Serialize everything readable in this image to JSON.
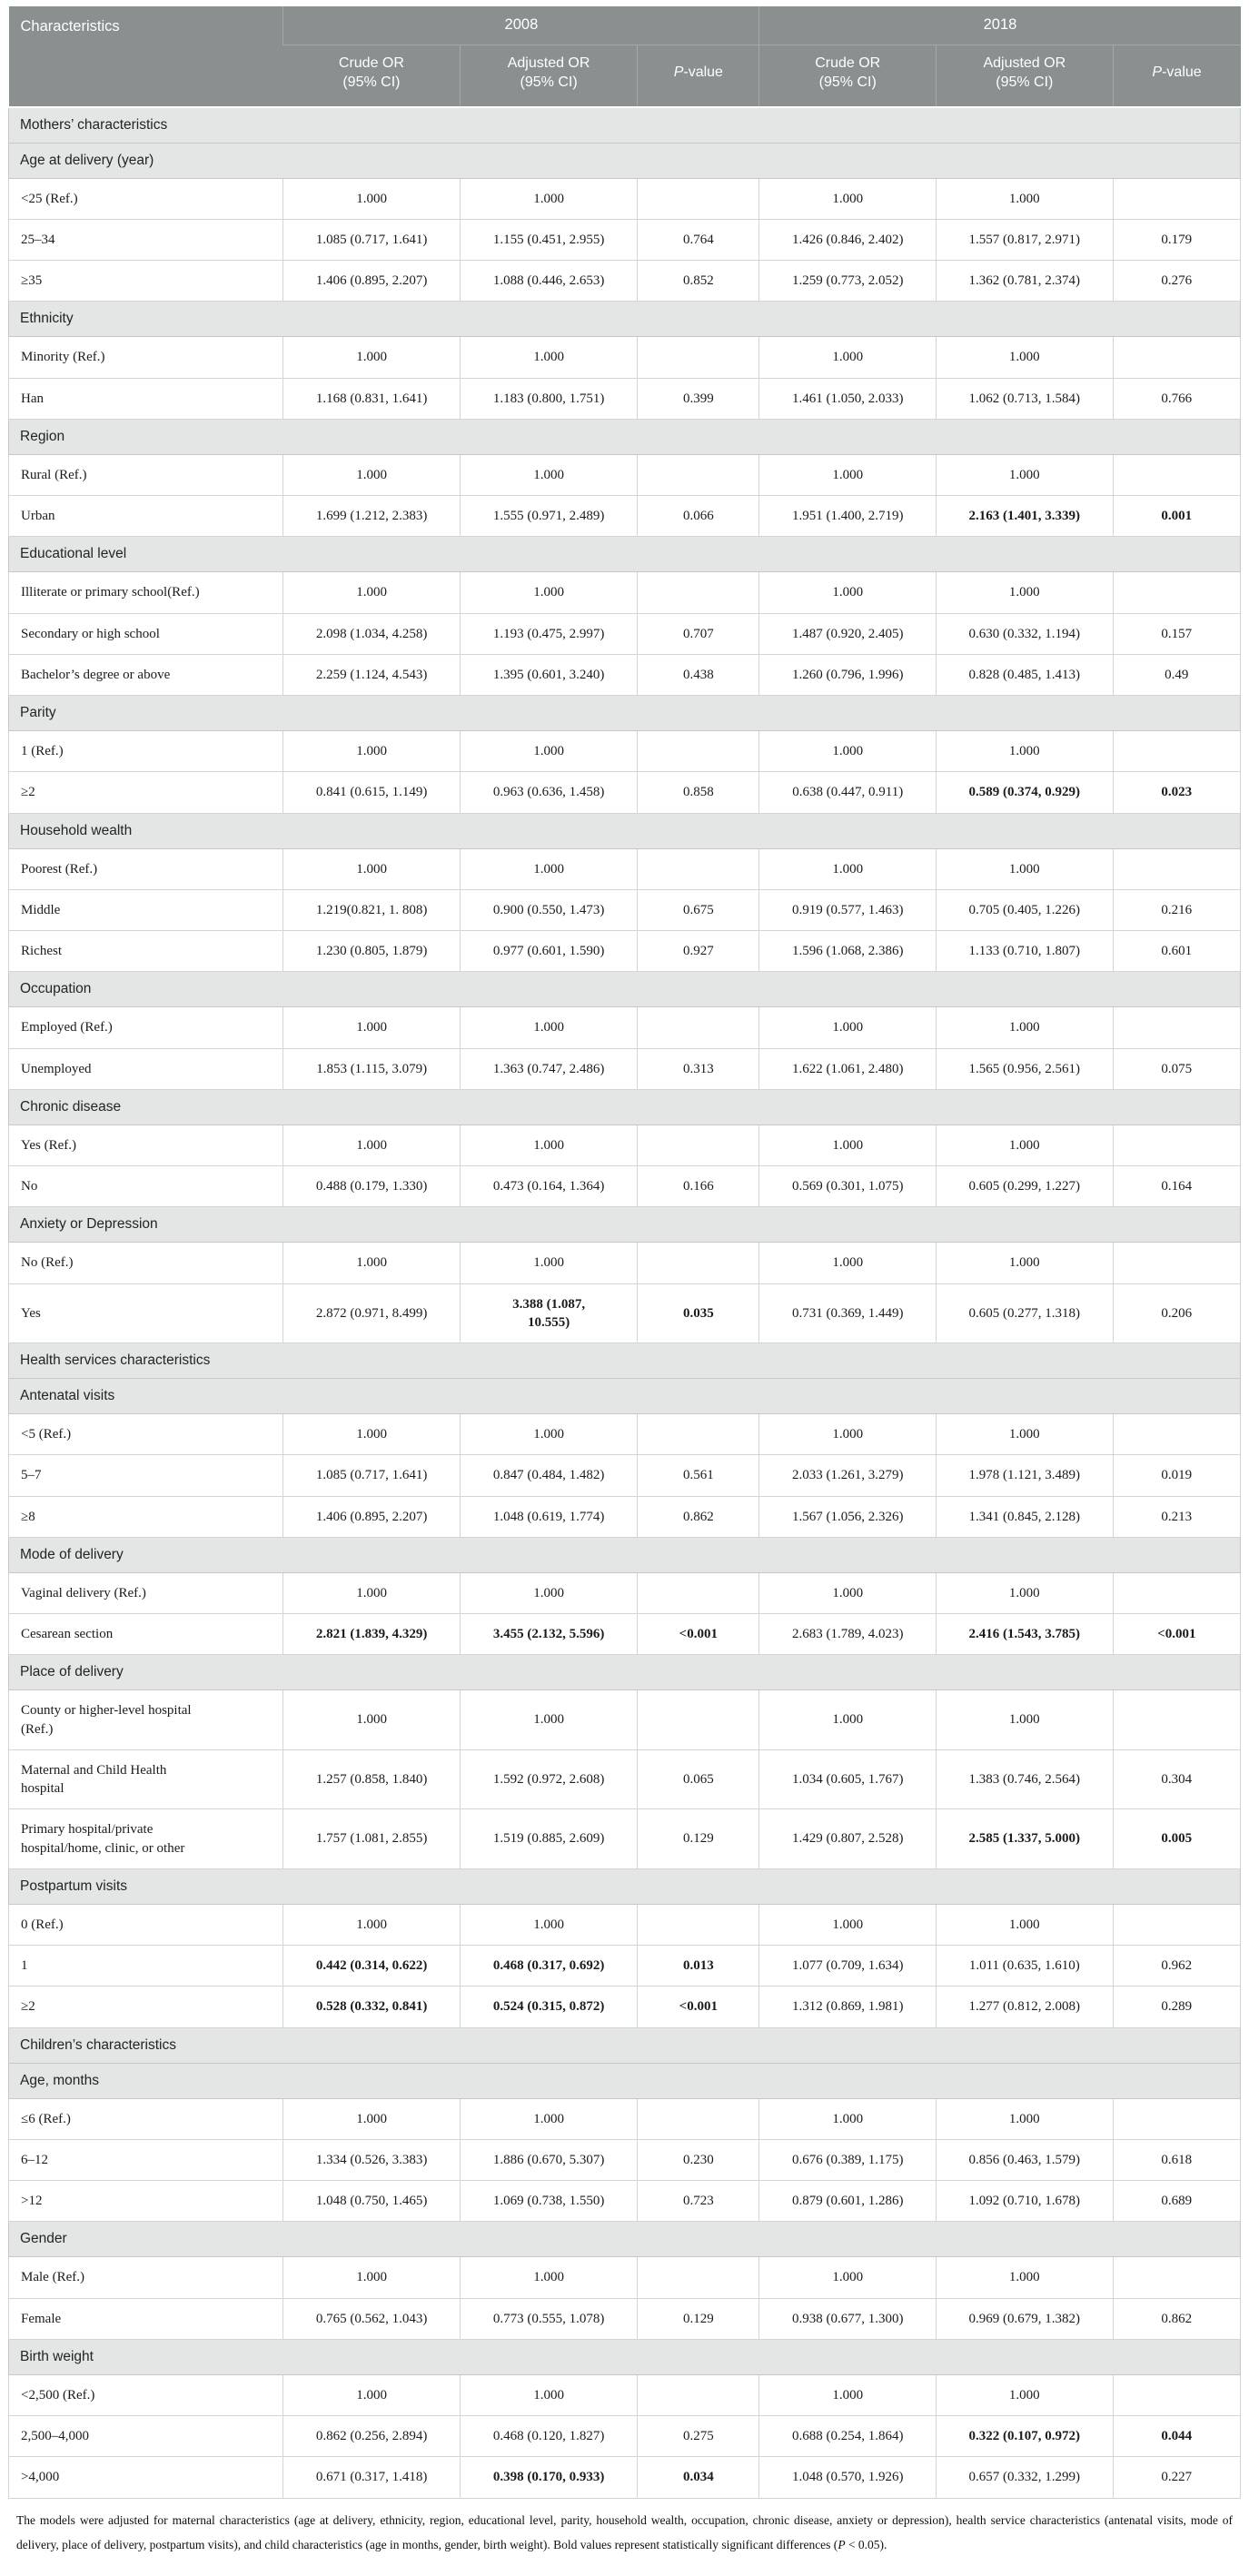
{
  "table": {
    "characteristics_label": "Characteristics",
    "year_groups": [
      "2008",
      "2018"
    ],
    "sub_headers": [
      {
        "label": "Crude OR\n(95% CI)",
        "italic_first": false
      },
      {
        "label": "Adjusted OR\n(95% CI)",
        "italic_first": false
      },
      {
        "label": "P-value",
        "italic_first": true
      }
    ],
    "sections": [
      {
        "label": "Mothers’ characteristics",
        "level": 1,
        "rows": []
      },
      {
        "label": "Age at delivery (year)",
        "level": 2,
        "rows": [
          {
            "label": "<25 (Ref.)",
            "cells": [
              "1.000",
              "1.000",
              "",
              "1.000",
              "1.000",
              ""
            ]
          },
          {
            "label": "25–34",
            "cells": [
              "1.085 (0.717, 1.641)",
              "1.155 (0.451, 2.955)",
              "0.764",
              "1.426 (0.846, 2.402)",
              "1.557 (0.817, 2.971)",
              "0.179"
            ]
          },
          {
            "label": "≥35",
            "cells": [
              "1.406 (0.895, 2.207)",
              "1.088 (0.446, 2.653)",
              "0.852",
              "1.259 (0.773, 2.052)",
              "1.362 (0.781, 2.374)",
              "0.276"
            ]
          }
        ]
      },
      {
        "label": "Ethnicity",
        "level": 2,
        "rows": [
          {
            "label": "Minority (Ref.)",
            "cells": [
              "1.000",
              "1.000",
              "",
              "1.000",
              "1.000",
              ""
            ]
          },
          {
            "label": "Han",
            "cells": [
              "1.168 (0.831, 1.641)",
              "1.183 (0.800, 1.751)",
              "0.399",
              "1.461 (1.050, 2.033)",
              "1.062 (0.713, 1.584)",
              "0.766"
            ]
          }
        ]
      },
      {
        "label": "Region",
        "level": 2,
        "rows": [
          {
            "label": "Rural (Ref.)",
            "cells": [
              "1.000",
              "1.000",
              "",
              "1.000",
              "1.000",
              ""
            ]
          },
          {
            "label": "Urban",
            "cells": [
              "1.699 (1.212, 2.383)",
              "1.555 (0.971, 2.489)",
              "0.066",
              "1.951 (1.400, 2.719)",
              {
                "v": "2.163 (1.401, 3.339)",
                "b": true
              },
              {
                "v": "0.001",
                "b": true
              }
            ]
          }
        ]
      },
      {
        "label": "Educational level",
        "level": 2,
        "rows": [
          {
            "label": "Illiterate or primary school(Ref.)",
            "cells": [
              "1.000",
              "1.000",
              "",
              "1.000",
              "1.000",
              ""
            ]
          },
          {
            "label": "Secondary or high school",
            "cells": [
              "2.098 (1.034, 4.258)",
              "1.193 (0.475, 2.997)",
              "0.707",
              "1.487 (0.920, 2.405)",
              "0.630 (0.332, 1.194)",
              "0.157"
            ]
          },
          {
            "label": "Bachelor’s degree or above",
            "cells": [
              "2.259 (1.124, 4.543)",
              "1.395 (0.601, 3.240)",
              "0.438",
              "1.260 (0.796, 1.996)",
              "0.828 (0.485, 1.413)",
              "0.49"
            ]
          }
        ]
      },
      {
        "label": "Parity",
        "level": 2,
        "rows": [
          {
            "label": "1 (Ref.)",
            "cells": [
              "1.000",
              "1.000",
              "",
              "1.000",
              "1.000",
              ""
            ]
          },
          {
            "label": "≥2",
            "cells": [
              "0.841 (0.615, 1.149)",
              "0.963 (0.636, 1.458)",
              "0.858",
              "0.638 (0.447, 0.911)",
              {
                "v": "0.589 (0.374, 0.929)",
                "b": true
              },
              {
                "v": "0.023",
                "b": true
              }
            ]
          }
        ]
      },
      {
        "label": "Household wealth",
        "level": 2,
        "rows": [
          {
            "label": "Poorest (Ref.)",
            "cells": [
              "1.000",
              "1.000",
              "",
              "1.000",
              "1.000",
              ""
            ]
          },
          {
            "label": "Middle",
            "cells": [
              "1.219(0.821, 1. 808)",
              "0.900 (0.550, 1.473)",
              "0.675",
              "0.919 (0.577, 1.463)",
              "0.705 (0.405, 1.226)",
              "0.216"
            ]
          },
          {
            "label": "Richest",
            "cells": [
              "1.230 (0.805, 1.879)",
              "0.977 (0.601, 1.590)",
              "0.927",
              "1.596 (1.068, 2.386)",
              "1.133 (0.710, 1.807)",
              "0.601"
            ]
          }
        ]
      },
      {
        "label": "Occupation",
        "level": 2,
        "rows": [
          {
            "label": "Employed (Ref.)",
            "cells": [
              "1.000",
              "1.000",
              "",
              "1.000",
              "1.000",
              ""
            ]
          },
          {
            "label": "Unemployed",
            "cells": [
              "1.853 (1.115, 3.079)",
              "1.363 (0.747, 2.486)",
              "0.313",
              "1.622 (1.061, 2.480)",
              "1.565 (0.956, 2.561)",
              "0.075"
            ]
          }
        ]
      },
      {
        "label": "Chronic disease",
        "level": 2,
        "rows": [
          {
            "label": "Yes (Ref.)",
            "cells": [
              "1.000",
              "1.000",
              "",
              "1.000",
              "1.000",
              ""
            ]
          },
          {
            "label": "No",
            "cells": [
              "0.488 (0.179, 1.330)",
              "0.473 (0.164, 1.364)",
              "0.166",
              "0.569 (0.301, 1.075)",
              "0.605 (0.299, 1.227)",
              "0.164"
            ]
          }
        ]
      },
      {
        "label": "Anxiety or Depression",
        "level": 2,
        "rows": [
          {
            "label": "No (Ref.)",
            "cells": [
              "1.000",
              "1.000",
              "",
              "1.000",
              "1.000",
              ""
            ]
          },
          {
            "label": "Yes",
            "cells": [
              "2.872 (0.971, 8.499)",
              {
                "v": "3.388 (1.087,\n10.555)",
                "b": true
              },
              {
                "v": "0.035",
                "b": true
              },
              "0.731 (0.369, 1.449)",
              "0.605 (0.277, 1.318)",
              "0.206"
            ]
          }
        ]
      },
      {
        "label": "Health services characteristics",
        "level": 1,
        "rows": []
      },
      {
        "label": "Antenatal visits",
        "level": 2,
        "rows": [
          {
            "label": "<5 (Ref.)",
            "cells": [
              "1.000",
              "1.000",
              "",
              "1.000",
              "1.000",
              ""
            ]
          },
          {
            "label": "5–7",
            "cells": [
              "1.085 (0.717, 1.641)",
              "0.847 (0.484, 1.482)",
              "0.561",
              "2.033 (1.261, 3.279)",
              "1.978 (1.121, 3.489)",
              "0.019"
            ]
          },
          {
            "label": "≥8",
            "cells": [
              "1.406 (0.895, 2.207)",
              "1.048 (0.619, 1.774)",
              "0.862",
              "1.567 (1.056, 2.326)",
              "1.341 (0.845, 2.128)",
              "0.213"
            ]
          }
        ]
      },
      {
        "label": "Mode of delivery",
        "level": 2,
        "rows": [
          {
            "label": "Vaginal delivery (Ref.)",
            "cells": [
              "1.000",
              "1.000",
              "",
              "1.000",
              "1.000",
              ""
            ]
          },
          {
            "label": "Cesarean section",
            "cells": [
              {
                "v": "2.821 (1.839, 4.329)",
                "b": true
              },
              {
                "v": "3.455 (2.132, 5.596)",
                "b": true
              },
              {
                "v": "<0.001",
                "b": true
              },
              "2.683 (1.789, 4.023)",
              {
                "v": "2.416 (1.543, 3.785)",
                "b": true
              },
              {
                "v": "<0.001",
                "b": true
              }
            ]
          }
        ]
      },
      {
        "label": "Place of delivery",
        "level": 2,
        "rows": [
          {
            "label": "County or higher-level hospital\n(Ref.)",
            "cells": [
              "1.000",
              "1.000",
              "",
              "1.000",
              "1.000",
              ""
            ]
          },
          {
            "label": "Maternal and Child Health\nhospital",
            "cells": [
              "1.257 (0.858, 1.840)",
              "1.592 (0.972, 2.608)",
              "0.065",
              "1.034 (0.605, 1.767)",
              "1.383 (0.746, 2.564)",
              "0.304"
            ]
          },
          {
            "label": "Primary hospital/private\nhospital/home, clinic, or other",
            "cells": [
              "1.757 (1.081, 2.855)",
              "1.519 (0.885, 2.609)",
              "0.129",
              "1.429 (0.807, 2.528)",
              {
                "v": "2.585 (1.337, 5.000)",
                "b": true
              },
              {
                "v": "0.005",
                "b": true
              }
            ]
          }
        ]
      },
      {
        "label": "Postpartum visits",
        "level": 2,
        "rows": [
          {
            "label": "0 (Ref.)",
            "cells": [
              "1.000",
              "1.000",
              "",
              "1.000",
              "1.000",
              ""
            ]
          },
          {
            "label": "1",
            "cells": [
              {
                "v": "0.442 (0.314, 0.622)",
                "b": true
              },
              {
                "v": "0.468 (0.317, 0.692)",
                "b": true
              },
              {
                "v": "0.013",
                "b": true
              },
              "1.077 (0.709, 1.634)",
              "1.011 (0.635, 1.610)",
              "0.962"
            ]
          },
          {
            "label": "≥2",
            "cells": [
              {
                "v": "0.528 (0.332, 0.841)",
                "b": true
              },
              {
                "v": "0.524 (0.315, 0.872)",
                "b": true
              },
              {
                "v": "<0.001",
                "b": true
              },
              "1.312 (0.869, 1.981)",
              "1.277 (0.812, 2.008)",
              "0.289"
            ]
          }
        ]
      },
      {
        "label": "Children’s characteristics",
        "level": 1,
        "rows": []
      },
      {
        "label": "Age, months",
        "level": 2,
        "rows": [
          {
            "label": "≤6 (Ref.)",
            "cells": [
              "1.000",
              "1.000",
              "",
              "1.000",
              "1.000",
              ""
            ]
          },
          {
            "label": "6–12",
            "cells": [
              "1.334 (0.526, 3.383)",
              "1.886 (0.670, 5.307)",
              "0.230",
              "0.676 (0.389, 1.175)",
              "0.856 (0.463, 1.579)",
              "0.618"
            ]
          },
          {
            "label": ">12",
            "cells": [
              "1.048 (0.750, 1.465)",
              "1.069 (0.738, 1.550)",
              "0.723",
              "0.879 (0.601, 1.286)",
              "1.092 (0.710, 1.678)",
              "0.689"
            ]
          }
        ]
      },
      {
        "label": "Gender",
        "level": 2,
        "rows": [
          {
            "label": "Male (Ref.)",
            "cells": [
              "1.000",
              "1.000",
              "",
              "1.000",
              "1.000",
              ""
            ]
          },
          {
            "label": "Female",
            "cells": [
              "0.765 (0.562, 1.043)",
              "0.773 (0.555, 1.078)",
              "0.129",
              "0.938 (0.677, 1.300)",
              "0.969 (0.679, 1.382)",
              "0.862"
            ]
          }
        ]
      },
      {
        "label": "Birth weight",
        "level": 2,
        "rows": [
          {
            "label": "<2,500 (Ref.)",
            "cells": [
              "1.000",
              "1.000",
              "",
              "1.000",
              "1.000",
              ""
            ]
          },
          {
            "label": "2,500–4,000",
            "cells": [
              "0.862 (0.256, 2.894)",
              "0.468 (0.120, 1.827)",
              "0.275",
              "0.688 (0.254, 1.864)",
              {
                "v": "0.322 (0.107, 0.972)",
                "b": true
              },
              {
                "v": "0.044",
                "b": true
              }
            ]
          },
          {
            "label": ">4,000",
            "cells": [
              "0.671 (0.317, 1.418)",
              {
                "v": "0.398 (0.170, 0.933)",
                "b": true
              },
              {
                "v": "0.034",
                "b": true
              },
              "1.048 (0.570, 1.926)",
              "0.657 (0.332, 1.299)",
              "0.227"
            ]
          }
        ]
      }
    ],
    "footnote_parts": [
      {
        "t": "The models were adjusted for maternal characteristics (age at delivery, ethnicity, region, educational level, parity, household wealth, occupation, chronic disease, anxiety or depression), health service characteristics (antenatal visits, mode of delivery, place of delivery, postpartum visits), and child characteristics (age in months, gender, birth weight). Bold values represent statistically significant differences (",
        "i": false
      },
      {
        "t": "P",
        "i": true
      },
      {
        "t": " < 0.05).",
        "i": false
      }
    ]
  }
}
